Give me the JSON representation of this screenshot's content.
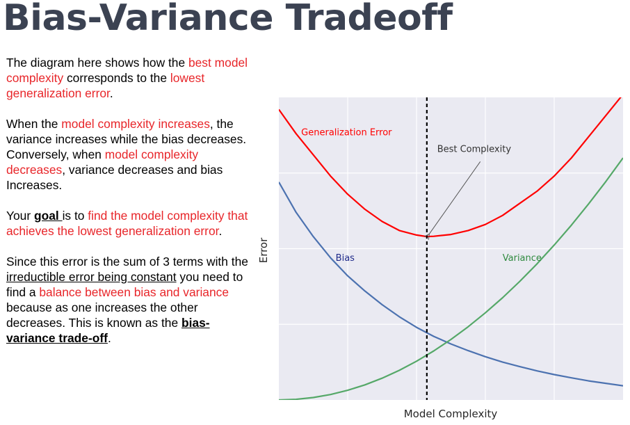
{
  "title": "Bias-Variance Tradeoff",
  "text": {
    "p1": {
      "a": "The diagram here shows how the ",
      "b": "best model complexity",
      "c": " corresponds to the ",
      "d": "lowest generalization error",
      "e": "."
    },
    "p2": {
      "a": "When the ",
      "b": "model complexity increases",
      "c": ", the variance increases while the bias decreases."
    },
    "p3": {
      "a": "Conversely, when ",
      "b": "model complexity decreases",
      "c": ", variance decreases and bias Increases."
    },
    "p4": {
      "a": "Your ",
      "b": "goal ",
      "c": "is to ",
      "d": "find the model complexity that achieves the lowest generalization error",
      "e": "."
    },
    "p5": {
      "a": "Since this error is the sum of 3 terms with the ",
      "b": "irreductible error being constant",
      "c": " you need to find a ",
      "d": "balance between bias and variance",
      "e": " because as one increases the other decreases. This is known as the ",
      "f": "bias-variance trade-off",
      "g": "."
    }
  },
  "chart_data": {
    "type": "line",
    "xlabel": "Model Complexity",
    "ylabel": "Error",
    "xlim": [
      0,
      1
    ],
    "ylim": [
      0,
      1
    ],
    "grid": true,
    "x_ticks_labels": false,
    "y_ticks_labels": false,
    "series": [
      {
        "name": "Generalization Error",
        "color": "#ff0000",
        "x": [
          0.0,
          0.05,
          0.1,
          0.15,
          0.2,
          0.25,
          0.3,
          0.35,
          0.4,
          0.43,
          0.45,
          0.5,
          0.55,
          0.6,
          0.65,
          0.7,
          0.75,
          0.8,
          0.85,
          0.9,
          0.95,
          1.0
        ],
        "y": [
          0.96,
          0.88,
          0.81,
          0.74,
          0.68,
          0.63,
          0.59,
          0.56,
          0.545,
          0.54,
          0.541,
          0.547,
          0.56,
          0.58,
          0.61,
          0.65,
          0.69,
          0.74,
          0.8,
          0.87,
          0.94,
          1.01
        ]
      },
      {
        "name": "Bias",
        "color": "#4c72b0",
        "x": [
          0.0,
          0.05,
          0.1,
          0.15,
          0.2,
          0.25,
          0.3,
          0.35,
          0.4,
          0.45,
          0.5,
          0.55,
          0.6,
          0.65,
          0.7,
          0.75,
          0.8,
          0.85,
          0.9,
          0.95,
          1.0
        ],
        "y": [
          0.72,
          0.62,
          0.54,
          0.47,
          0.41,
          0.36,
          0.315,
          0.275,
          0.24,
          0.21,
          0.185,
          0.163,
          0.143,
          0.125,
          0.11,
          0.096,
          0.084,
          0.073,
          0.063,
          0.055,
          0.047
        ]
      },
      {
        "name": "Variance",
        "color": "#55a868",
        "x": [
          0.0,
          0.05,
          0.1,
          0.15,
          0.2,
          0.25,
          0.3,
          0.35,
          0.4,
          0.45,
          0.5,
          0.55,
          0.6,
          0.65,
          0.7,
          0.75,
          0.8,
          0.85,
          0.9,
          0.95,
          1.0
        ],
        "y": [
          0.0,
          0.002,
          0.008,
          0.018,
          0.032,
          0.05,
          0.072,
          0.098,
          0.128,
          0.162,
          0.2,
          0.242,
          0.288,
          0.338,
          0.392,
          0.45,
          0.512,
          0.578,
          0.648,
          0.722,
          0.8
        ]
      }
    ],
    "annotations": [
      {
        "text": "Best Complexity",
        "x": 0.43,
        "y": 0.54,
        "arrow": true,
        "text_x": 0.46,
        "text_y": 0.82
      },
      {
        "text": "Generalization Error",
        "x": 0.065,
        "y": 0.875
      },
      {
        "text": "Bias",
        "x": 0.165,
        "y": 0.46
      },
      {
        "text": "Variance",
        "x": 0.65,
        "y": 0.46
      }
    ],
    "vline": {
      "x": 0.43,
      "style": "dashed",
      "color": "#000000"
    }
  }
}
